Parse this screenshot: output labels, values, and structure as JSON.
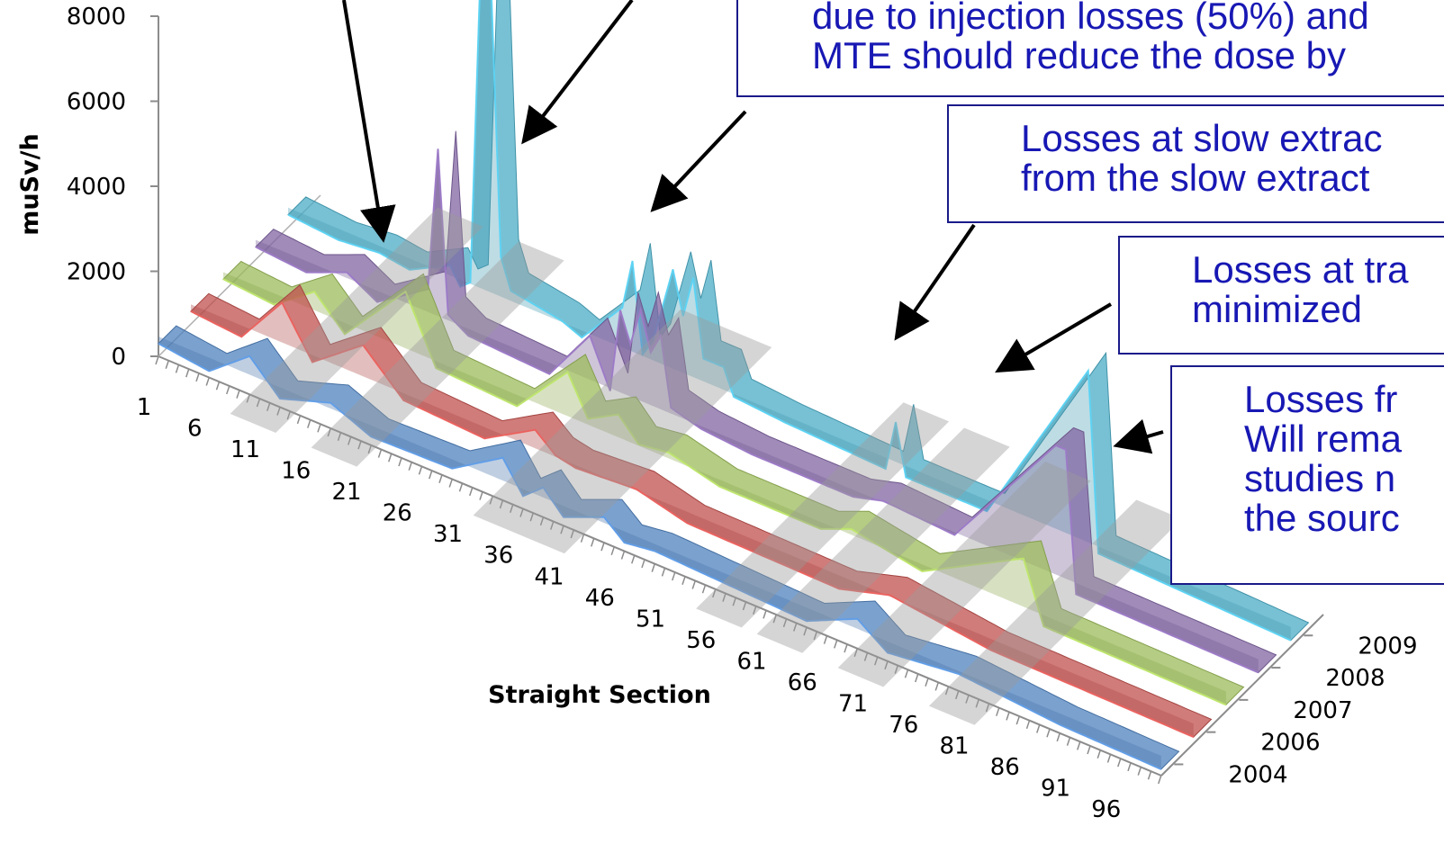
{
  "chart_data": {
    "type": "area",
    "view": "3d",
    "ylabel": "muSv/h",
    "xlabel": "Straight Section",
    "y_ticks": [
      "0",
      "2000",
      "4000",
      "6000",
      "8000"
    ],
    "x_ticks": [
      "1",
      "6",
      "11",
      "16",
      "21",
      "26",
      "31",
      "36",
      "41",
      "46",
      "51",
      "56",
      "61",
      "66",
      "71",
      "76",
      "81",
      "86",
      "91",
      "96"
    ],
    "ylim": [
      0,
      8000
    ],
    "xlim": [
      1,
      100
    ],
    "series": [
      {
        "name": "2004",
        "color": "#4f81bd",
        "points": [
          [
            1,
            300
          ],
          [
            6,
            150
          ],
          [
            10,
            900
          ],
          [
            13,
            200
          ],
          [
            18,
            600
          ],
          [
            22,
            200
          ],
          [
            30,
            250
          ],
          [
            35,
            1000
          ],
          [
            37,
            300
          ],
          [
            39,
            700
          ],
          [
            41,
            200
          ],
          [
            45,
            600
          ],
          [
            47,
            200
          ],
          [
            50,
            300
          ],
          [
            65,
            150
          ],
          [
            70,
            700
          ],
          [
            73,
            200
          ],
          [
            80,
            400
          ],
          [
            90,
            200
          ],
          [
            100,
            150
          ]
        ]
      },
      {
        "name": "2006",
        "color": "#c0504d",
        "points": [
          [
            1,
            300
          ],
          [
            6,
            200
          ],
          [
            10,
            1400
          ],
          [
            13,
            300
          ],
          [
            18,
            1200
          ],
          [
            22,
            300
          ],
          [
            30,
            200
          ],
          [
            35,
            900
          ],
          [
            37,
            500
          ],
          [
            39,
            400
          ],
          [
            45,
            500
          ],
          [
            50,
            200
          ],
          [
            65,
            150
          ],
          [
            70,
            500
          ],
          [
            80,
            200
          ],
          [
            100,
            150
          ]
        ]
      },
      {
        "name": "2007",
        "color": "#9bbb59",
        "points": [
          [
            1,
            300
          ],
          [
            6,
            200
          ],
          [
            10,
            900
          ],
          [
            13,
            200
          ],
          [
            19,
            1800
          ],
          [
            22,
            300
          ],
          [
            30,
            200
          ],
          [
            35,
            1500
          ],
          [
            37,
            600
          ],
          [
            40,
            1000
          ],
          [
            42,
            500
          ],
          [
            45,
            600
          ],
          [
            50,
            300
          ],
          [
            60,
            300
          ],
          [
            63,
            600
          ],
          [
            70,
            300
          ],
          [
            80,
            1600
          ],
          [
            82,
            200
          ],
          [
            100,
            150
          ]
        ]
      },
      {
        "name": "2008",
        "color": "#8064a2",
        "points": [
          [
            1,
            300
          ],
          [
            6,
            200
          ],
          [
            10,
            600
          ],
          [
            13,
            200
          ],
          [
            18,
            1000
          ],
          [
            19,
            4400
          ],
          [
            20,
            600
          ],
          [
            22,
            300
          ],
          [
            30,
            200
          ],
          [
            34,
            1500
          ],
          [
            36,
            400
          ],
          [
            37,
            2400
          ],
          [
            38,
            1700
          ],
          [
            39,
            2600
          ],
          [
            40,
            1700
          ],
          [
            41,
            2200
          ],
          [
            42,
            600
          ],
          [
            45,
            400
          ],
          [
            50,
            300
          ],
          [
            60,
            300
          ],
          [
            63,
            500
          ],
          [
            70,
            400
          ],
          [
            80,
            3500
          ],
          [
            81,
            3500
          ],
          [
            82,
            200
          ],
          [
            100,
            150
          ]
        ]
      },
      {
        "name": "2009",
        "color": "#4bacc6",
        "points": [
          [
            1,
            300
          ],
          [
            6,
            200
          ],
          [
            10,
            300
          ],
          [
            13,
            200
          ],
          [
            17,
            700
          ],
          [
            18,
            300
          ],
          [
            19,
            500
          ],
          [
            20,
            8000
          ],
          [
            21,
            8000
          ],
          [
            22,
            1400
          ],
          [
            23,
            700
          ],
          [
            28,
            500
          ],
          [
            30,
            300
          ],
          [
            34,
            1400
          ],
          [
            35,
            2600
          ],
          [
            36,
            500
          ],
          [
            37,
            900
          ],
          [
            39,
            2800
          ],
          [
            40,
            1800
          ],
          [
            41,
            2800
          ],
          [
            42,
            1000
          ],
          [
            44,
            1000
          ],
          [
            45,
            400
          ],
          [
            50,
            300
          ],
          [
            60,
            200
          ],
          [
            61,
            1400
          ],
          [
            62,
            200
          ],
          [
            70,
            200
          ],
          [
            80,
            4500
          ],
          [
            81,
            300
          ],
          [
            100,
            150
          ]
        ]
      }
    ],
    "annotations": [
      {
        "id": "injection",
        "lines": [
          "due to injection losses (50%) and",
          "MTE should reduce the dose by"
        ]
      },
      {
        "id": "slow",
        "lines": [
          "Losses at slow extrac",
          "from the slow extract"
        ]
      },
      {
        "id": "transfer",
        "lines": [
          "Losses at tra",
          "minimized"
        ]
      },
      {
        "id": "remain",
        "lines": [
          "Losses fr",
          "Will rema",
          "studies n",
          "the sourc"
        ]
      }
    ]
  }
}
